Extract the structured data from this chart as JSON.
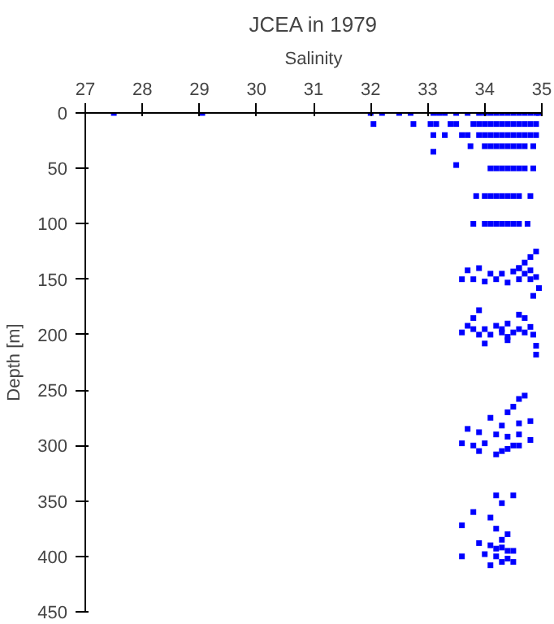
{
  "chart_data": {
    "type": "scatter",
    "title": "JCEA in 1979",
    "xlabel": "Salinity",
    "ylabel": "Depth [m]",
    "xlim": [
      27,
      35
    ],
    "ylim": [
      450,
      0
    ],
    "xticks": [
      27,
      28,
      29,
      30,
      31,
      32,
      33,
      34,
      35
    ],
    "yticks": [
      0,
      50,
      100,
      150,
      200,
      250,
      300,
      350,
      400,
      450
    ],
    "grid": false,
    "marker": "square",
    "color": "#0000ff",
    "x": [
      27.5,
      29.05,
      32.0,
      32.2,
      32.5,
      32.7,
      33.1,
      33.2,
      33.3,
      33.5,
      33.7,
      33.9,
      34.0,
      34.1,
      34.2,
      34.3,
      34.4,
      34.5,
      34.6,
      34.7,
      34.8,
      34.9,
      34.95,
      32.05,
      32.75,
      33.05,
      33.15,
      33.4,
      33.5,
      33.8,
      33.9,
      34.0,
      34.1,
      34.2,
      34.3,
      34.4,
      34.5,
      34.6,
      34.7,
      34.8,
      34.9,
      33.1,
      33.3,
      33.6,
      33.7,
      33.9,
      34.0,
      34.1,
      34.2,
      34.3,
      34.4,
      34.5,
      34.6,
      34.7,
      34.8,
      34.9,
      33.1,
      33.75,
      34.0,
      34.1,
      34.2,
      34.3,
      34.4,
      34.5,
      34.6,
      34.7,
      34.85,
      33.5,
      34.1,
      34.2,
      34.3,
      34.4,
      34.5,
      34.6,
      34.7,
      34.85,
      33.85,
      34.0,
      34.1,
      34.2,
      34.3,
      34.4,
      34.5,
      34.6,
      34.8,
      33.8,
      34.0,
      34.1,
      34.2,
      34.3,
      34.4,
      34.5,
      34.6,
      34.75,
      34.9,
      34.8,
      34.7,
      34.6,
      33.7,
      33.9,
      34.1,
      34.3,
      34.5,
      34.6,
      34.7,
      34.8,
      34.9,
      33.6,
      33.8,
      34.0,
      34.2,
      34.4,
      34.6,
      34.8,
      34.95,
      34.85,
      34.9,
      33.9,
      33.8,
      34.6,
      34.7,
      33.7,
      33.8,
      34.0,
      34.2,
      34.3,
      34.4,
      34.5,
      34.6,
      34.8,
      33.6,
      33.9,
      34.1,
      34.3,
      34.4,
      34.7,
      34.85,
      34.0,
      34.4,
      34.9,
      34.7,
      34.6,
      34.5,
      34.4,
      34.1,
      34.3,
      34.6,
      34.8,
      33.7,
      33.9,
      34.2,
      34.4,
      34.6,
      34.8,
      33.6,
      33.8,
      34.0,
      34.3,
      34.5,
      33.9,
      34.2,
      34.4,
      34.6,
      34.2,
      34.5,
      34.3,
      33.8,
      34.1,
      33.6,
      34.2,
      34.4,
      34.3,
      33.9,
      34.1,
      34.3,
      34.5,
      34.2,
      34.4,
      33.6,
      34.0,
      34.2,
      34.4,
      34.3,
      34.5,
      34.1
    ],
    "values": [
      0,
      0,
      0,
      0,
      0,
      0,
      0,
      0,
      0,
      0,
      0,
      0,
      0,
      0,
      0,
      0,
      0,
      0,
      0,
      0,
      0,
      0,
      0,
      10,
      10,
      10,
      10,
      10,
      10,
      10,
      10,
      10,
      10,
      10,
      10,
      10,
      10,
      10,
      10,
      10,
      10,
      20,
      20,
      20,
      20,
      20,
      20,
      20,
      20,
      20,
      20,
      20,
      20,
      20,
      20,
      20,
      35,
      30,
      30,
      30,
      30,
      30,
      30,
      30,
      30,
      30,
      30,
      47,
      50,
      50,
      50,
      50,
      50,
      50,
      50,
      50,
      75,
      75,
      75,
      75,
      75,
      75,
      75,
      75,
      75,
      100,
      100,
      100,
      100,
      100,
      100,
      100,
      100,
      100,
      125,
      130,
      135,
      140,
      142,
      140,
      145,
      145,
      143,
      140,
      145,
      142,
      148,
      150,
      150,
      152,
      150,
      153,
      150,
      150,
      158,
      165,
      218,
      178,
      185,
      182,
      185,
      192,
      195,
      195,
      192,
      195,
      190,
      198,
      195,
      193,
      198,
      200,
      200,
      198,
      202,
      198,
      200,
      208,
      205,
      210,
      255,
      258,
      265,
      270,
      275,
      282,
      280,
      278,
      285,
      288,
      290,
      292,
      290,
      295,
      298,
      300,
      298,
      305,
      300,
      305,
      308,
      303,
      300,
      345,
      345,
      352,
      360,
      365,
      372,
      375,
      380,
      385,
      388,
      390,
      392,
      395,
      393,
      395,
      400,
      398,
      400,
      402,
      405,
      405,
      408
    ]
  }
}
